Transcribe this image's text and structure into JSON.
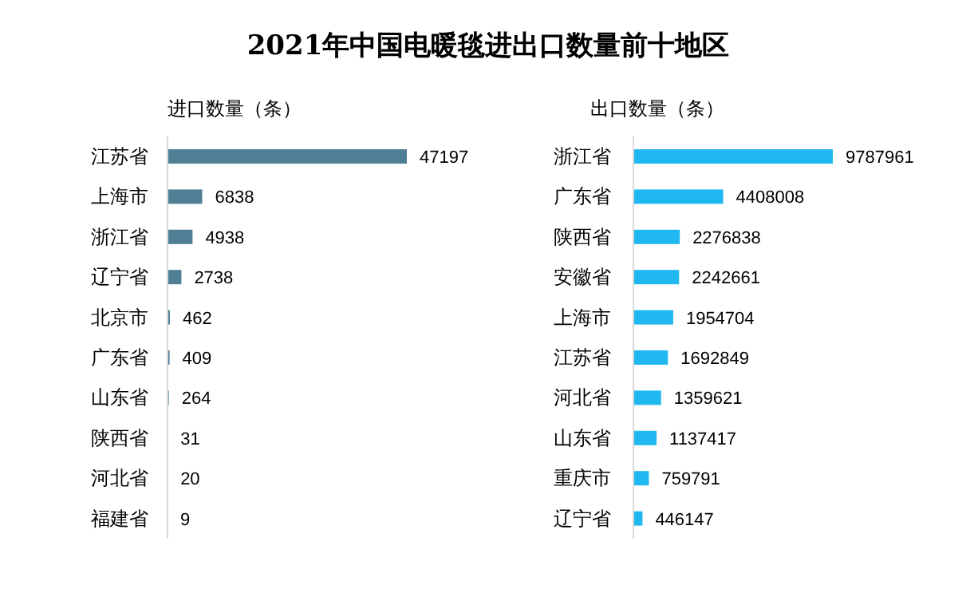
{
  "chart_data": [
    {
      "type": "bar",
      "orientation": "horizontal",
      "title": "2021年中国电暖毯进出口数量前十地区",
      "subtitle": "进口数量（条）",
      "categories": [
        "江苏省",
        "上海市",
        "浙江省",
        "辽宁省",
        "北京市",
        "广东省",
        "山东省",
        "陕西省",
        "河北省",
        "福建省"
      ],
      "values": [
        47197,
        6838,
        4938,
        2738,
        462,
        409,
        264,
        31,
        20,
        9
      ],
      "color": "#4e7f94",
      "data_labels": true
    },
    {
      "type": "bar",
      "orientation": "horizontal",
      "subtitle": "出口数量（条）",
      "categories": [
        "浙江省",
        "广东省",
        "陕西省",
        "安徽省",
        "上海市",
        "江苏省",
        "河北省",
        "山东省",
        "重庆市",
        "辽宁省"
      ],
      "values": [
        9787961,
        4408008,
        2276838,
        2242661,
        1954704,
        1692849,
        1359621,
        1137417,
        759791,
        446147
      ],
      "color": "#1fb8f0",
      "data_labels": true
    }
  ]
}
